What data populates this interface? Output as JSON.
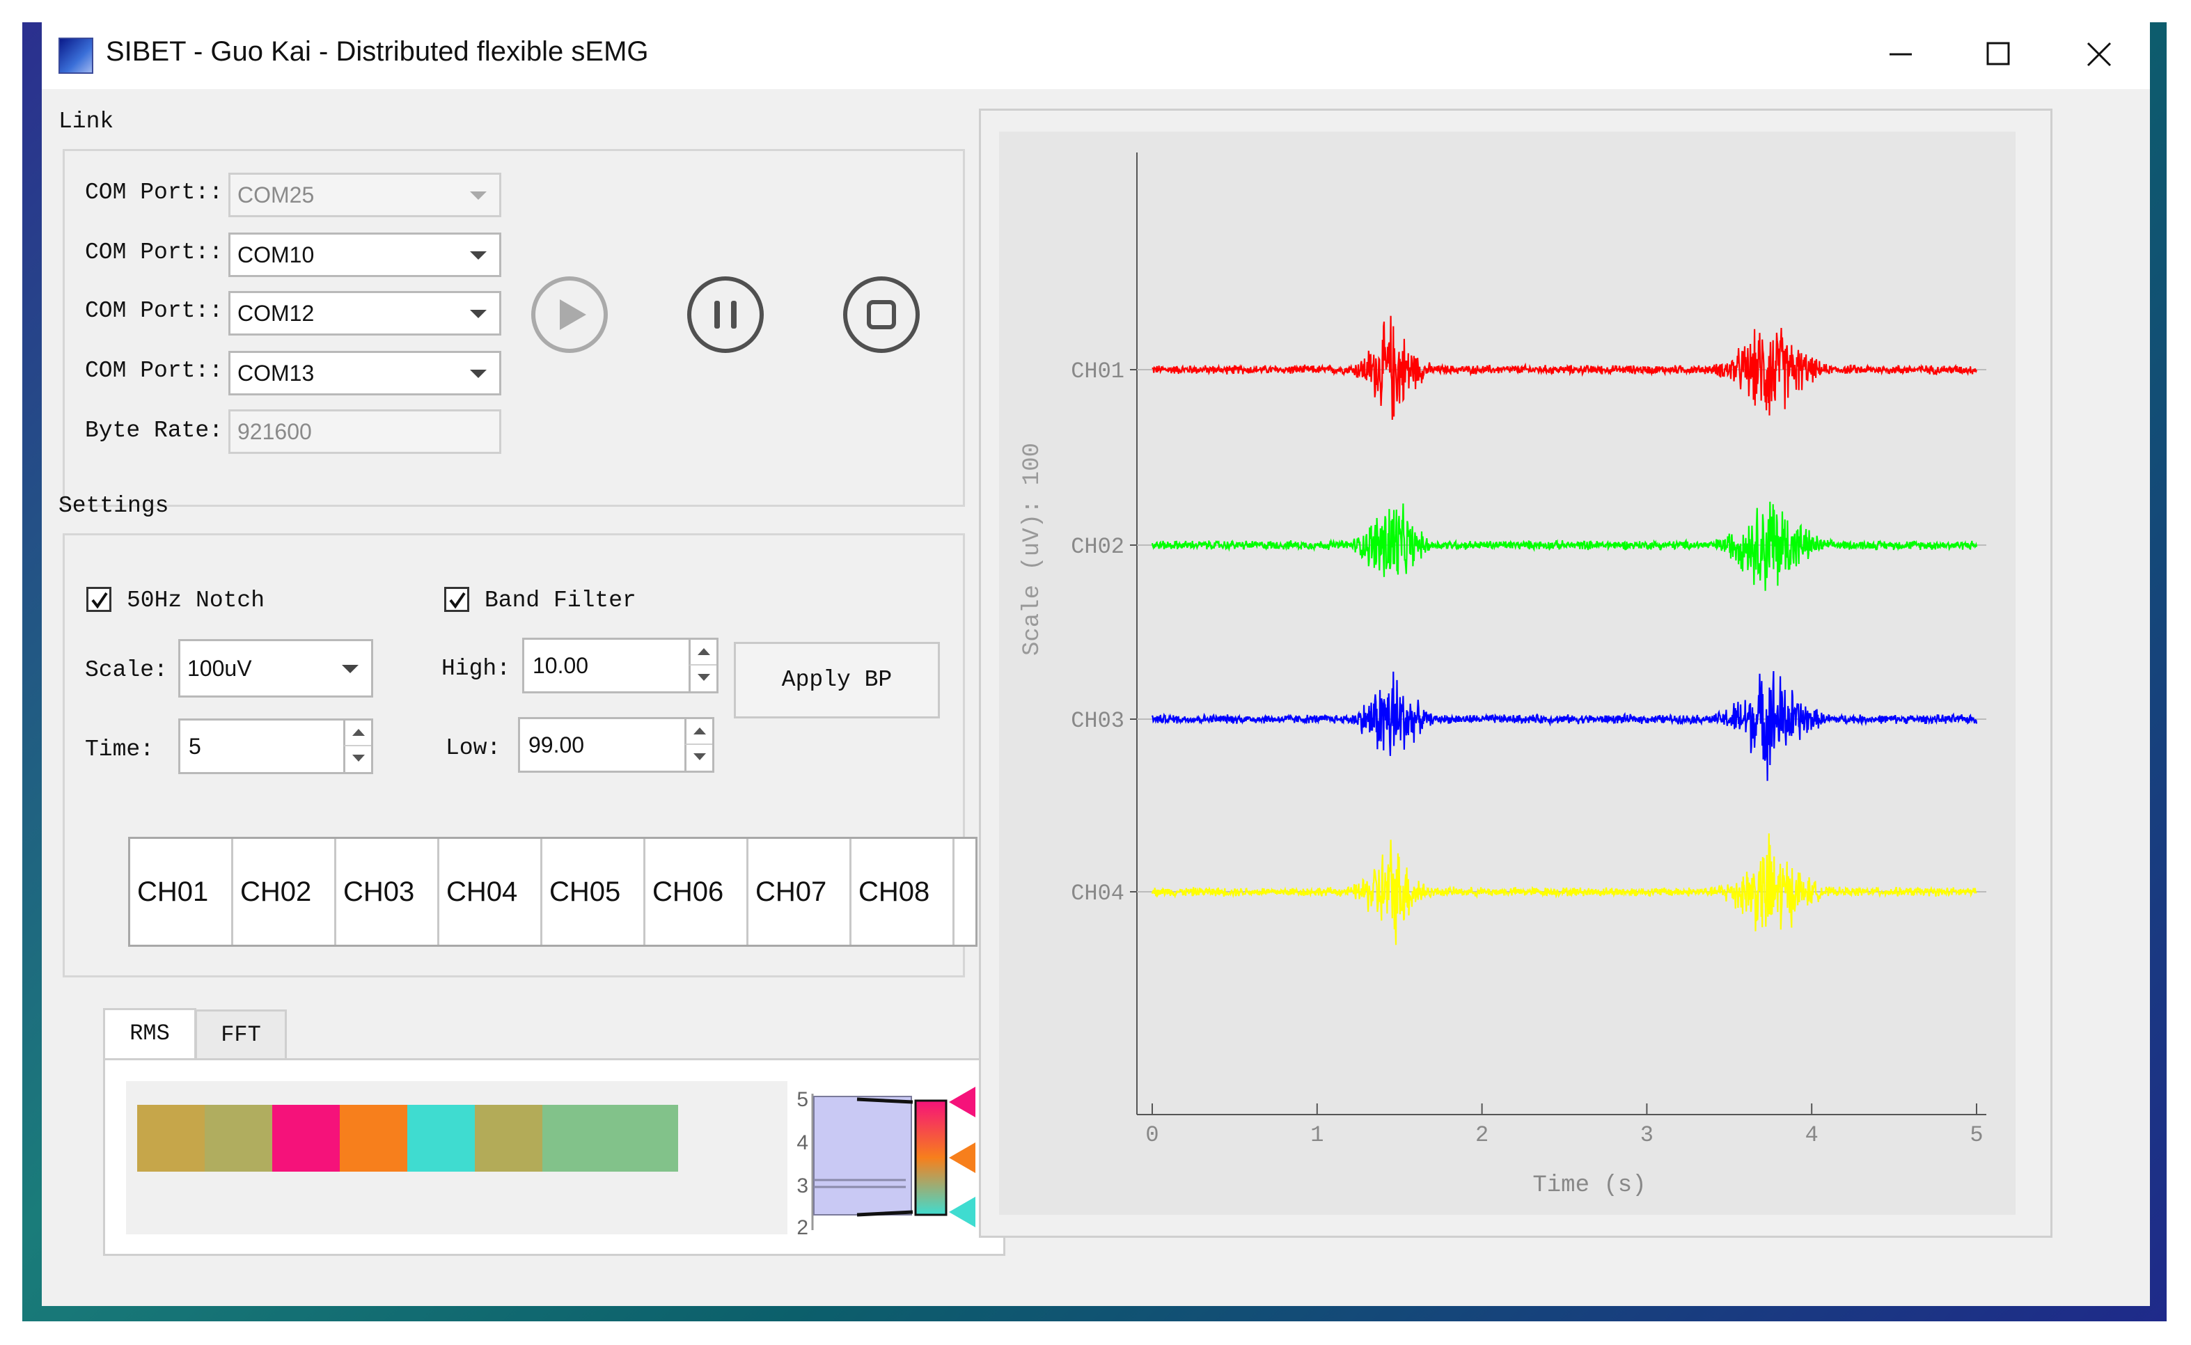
{
  "window": {
    "title": "SIBET - Guo Kai - Distributed flexible sEMG",
    "controls": [
      "minimize-icon",
      "maximize-icon",
      "close-icon"
    ]
  },
  "link": {
    "title": "Link",
    "ports": [
      {
        "label": "COM Port::",
        "value": "COM25",
        "enabled": false
      },
      {
        "label": "COM Port::",
        "value": "COM10",
        "enabled": true
      },
      {
        "label": "COM Port::",
        "value": "COM12",
        "enabled": true
      },
      {
        "label": "COM Port::",
        "value": "COM13",
        "enabled": true
      }
    ],
    "byte_rate_label": "Byte Rate:",
    "byte_rate_value": "921600",
    "controls": [
      "play-icon",
      "pause-icon",
      "stop-icon"
    ]
  },
  "settings": {
    "title": "Settings",
    "notch_label": "50Hz Notch",
    "notch_checked": true,
    "band_label": "Band Filter",
    "band_checked": true,
    "scale_label": "Scale:",
    "scale_value": "100uV",
    "time_label": "Time:",
    "time_value": "5",
    "high_label": "High:",
    "high_value": "10.00",
    "low_label": "Low:",
    "low_value": "99.00",
    "apply_label": "Apply BP",
    "channels": [
      "CH01",
      "CH02",
      "CH03",
      "CH04",
      "CH05",
      "CH06",
      "CH07",
      "CH08"
    ]
  },
  "tabs": {
    "items": [
      "RMS",
      "FFT"
    ],
    "active": "RMS",
    "rms_colors": [
      "#c6a64a",
      "#b0ad5f",
      "#f5127a",
      "#f77f1c",
      "#3fdcd0",
      "#b3ab58",
      "#82c28a",
      "#82c28a"
    ],
    "gauge_ticks": [
      "5",
      "4",
      "3",
      "2"
    ],
    "marker_colors": [
      "#f5127a",
      "#f77f1c",
      "#3fdcd0"
    ]
  },
  "chart_data": {
    "type": "line",
    "xlabel": "Time (s)",
    "ylabel": "Scale (uV): 100",
    "xlim": [
      0,
      5
    ],
    "x_ticks": [
      "0",
      "1",
      "2",
      "3",
      "4",
      "5"
    ],
    "grid": false,
    "series": [
      {
        "name": "CH01",
        "color": "#ff0000",
        "bursts": [
          [
            1.4,
            1.5
          ],
          [
            3.6,
            3.9
          ]
        ]
      },
      {
        "name": "CH02",
        "color": "#00ff00",
        "bursts": [
          [
            1.4,
            1.5
          ],
          [
            3.6,
            3.9
          ]
        ]
      },
      {
        "name": "CH03",
        "color": "#0000ff",
        "bursts": [
          [
            1.4,
            1.5
          ],
          [
            3.6,
            3.9
          ]
        ]
      },
      {
        "name": "CH04",
        "color": "#ffff00",
        "bursts": [
          [
            1.4,
            1.5
          ],
          [
            3.6,
            3.9
          ]
        ]
      }
    ]
  }
}
